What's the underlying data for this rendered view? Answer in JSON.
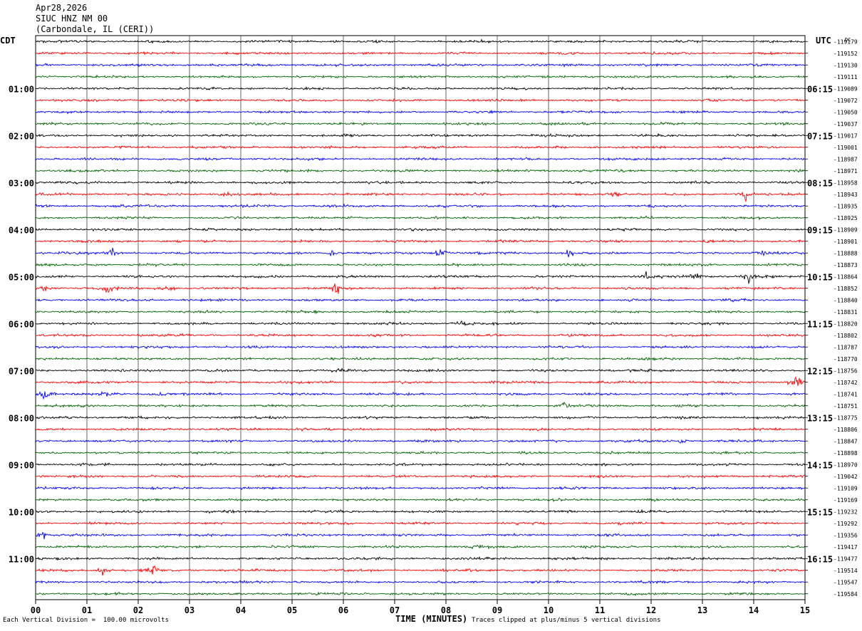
{
  "header": {
    "date": "Apr28,2026",
    "station": "SIUC HNZ NM 00",
    "location": "(Carbondale, IL (CERI))"
  },
  "left_timezone": "CDT",
  "right_timezone": "UTC",
  "dc_label": "DC",
  "footer": {
    "scale_note": "Each Vertical Division =  100.00 microvolts",
    "clip_note": "Traces clipped at plus/minus 5 vertical divisions"
  },
  "colors": {
    "trace_cycle": [
      "#000000",
      "#ff0000",
      "#0000ff",
      "#006400"
    ],
    "grid": "#000000",
    "background": "#ffffff"
  },
  "chart_data": {
    "type": "line",
    "xlabel": "TIME (MINUTES)",
    "x_ticks": [
      "00",
      "01",
      "02",
      "03",
      "04",
      "05",
      "06",
      "07",
      "08",
      "09",
      "10",
      "11",
      "12",
      "13",
      "14",
      "15"
    ],
    "xlim": [
      0,
      15
    ],
    "minutes_per_row": 15,
    "row_count": 48,
    "left_hour_labels": [
      "01:00",
      "02:00",
      "03:00",
      "04:00",
      "05:00",
      "06:00",
      "07:00",
      "08:00",
      "09:00",
      "10:00",
      "11:00"
    ],
    "right_hour_labels": [
      "06:15",
      "07:15",
      "08:15",
      "09:15",
      "10:15",
      "11:15",
      "12:15",
      "13:15",
      "14:15",
      "15:15",
      "16:15"
    ],
    "dc_offsets": [
      -119179,
      -119152,
      -119130,
      -119111,
      -119089,
      -119072,
      -119050,
      -119037,
      -119017,
      -119001,
      -118987,
      -118971,
      -118958,
      -118943,
      -118935,
      -118925,
      -118909,
      -118901,
      -118888,
      -118873,
      -118864,
      -118852,
      -118840,
      -118831,
      -118820,
      -118802,
      -118787,
      -118770,
      -118756,
      -118742,
      -118741,
      -118751,
      -118775,
      -118806,
      -118847,
      -118898,
      -118970,
      -119042,
      -119109,
      -119169,
      -119232,
      -119292,
      -119356,
      -119417,
      -119477,
      -119514,
      -119547,
      -119584
    ],
    "events": [
      {
        "row": 13,
        "minute": 3.7,
        "strength": 1.5
      },
      {
        "row": 13,
        "minute": 11.3,
        "strength": 1.8
      },
      {
        "row": 13,
        "minute": 13.85,
        "strength": 3.5
      },
      {
        "row": 18,
        "minute": 1.5,
        "strength": 1.8
      },
      {
        "row": 18,
        "minute": 5.8,
        "strength": 2.2
      },
      {
        "row": 18,
        "minute": 7.9,
        "strength": 3.8
      },
      {
        "row": 18,
        "minute": 10.4,
        "strength": 2.0
      },
      {
        "row": 18,
        "minute": 14.2,
        "strength": 2.0
      },
      {
        "row": 20,
        "minute": 11.9,
        "strength": 2.0
      },
      {
        "row": 20,
        "minute": 12.85,
        "strength": 3.0
      },
      {
        "row": 20,
        "minute": 13.9,
        "strength": 2.5
      },
      {
        "row": 21,
        "minute": 0.2,
        "strength": 2.0
      },
      {
        "row": 21,
        "minute": 1.4,
        "strength": 4.5
      },
      {
        "row": 21,
        "minute": 2.6,
        "strength": 2.0
      },
      {
        "row": 21,
        "minute": 5.85,
        "strength": 3.5
      },
      {
        "row": 24,
        "minute": 8.3,
        "strength": 1.8
      },
      {
        "row": 28,
        "minute": 5.9,
        "strength": 1.5
      },
      {
        "row": 29,
        "minute": 14.85,
        "strength": 4.5
      },
      {
        "row": 30,
        "minute": 0.15,
        "strength": 3.5
      },
      {
        "row": 30,
        "minute": 1.4,
        "strength": 2.0
      },
      {
        "row": 30,
        "minute": 2.4,
        "strength": 1.5
      },
      {
        "row": 31,
        "minute": 10.3,
        "strength": 1.8
      },
      {
        "row": 33,
        "minute": 5.2,
        "strength": 2.0
      },
      {
        "row": 34,
        "minute": 12.6,
        "strength": 1.5
      },
      {
        "row": 42,
        "minute": 0.15,
        "strength": 2.5
      },
      {
        "row": 43,
        "minute": 8.6,
        "strength": 1.5
      },
      {
        "row": 45,
        "minute": 1.3,
        "strength": 2.2
      },
      {
        "row": 45,
        "minute": 2.3,
        "strength": 3.0
      }
    ]
  }
}
